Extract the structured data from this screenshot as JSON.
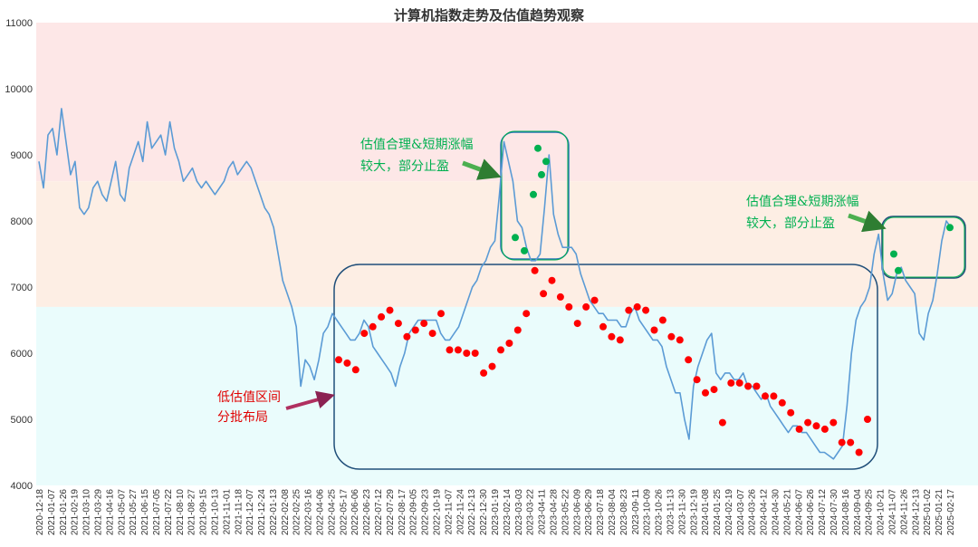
{
  "chart_data": {
    "type": "line",
    "title": "计算机指数走势及估值趋势观察",
    "xlabel": "",
    "ylabel": "",
    "ylim": [
      4000,
      11000
    ],
    "y_ticks": [
      4000,
      5000,
      6000,
      7000,
      8000,
      9000,
      10000,
      11000
    ],
    "x_tick_labels": [
      "2020-12-18",
      "2021-01-07",
      "2021-01-26",
      "2021-02-19",
      "2021-03-10",
      "2021-03-29",
      "2021-04-16",
      "2021-05-07",
      "2021-05-27",
      "2021-06-15",
      "2021-07-05",
      "2021-07-22",
      "2021-08-10",
      "2021-08-27",
      "2021-09-15",
      "2021-10-13",
      "2021-11-01",
      "2021-11-18",
      "2021-12-07",
      "2021-12-24",
      "2022-01-13",
      "2022-02-08",
      "2022-02-25",
      "2022-03-16",
      "2022-04-06",
      "2022-04-25",
      "2022-05-17",
      "2022-06-06",
      "2022-06-23",
      "2022-07-12",
      "2022-07-29",
      "2022-08-17",
      "2022-09-05",
      "2022-09-23",
      "2022-10-19",
      "2022-11-07",
      "2022-11-24",
      "2022-12-13",
      "2022-12-30",
      "2023-01-19",
      "2023-02-14",
      "2023-03-03",
      "2023-03-22",
      "2023-04-11",
      "2023-04-28",
      "2023-05-22",
      "2023-06-09",
      "2023-06-29",
      "2023-07-18",
      "2023-08-04",
      "2023-08-23",
      "2023-09-11",
      "2023-10-09",
      "2023-10-26",
      "2023-11-13",
      "2023-11-30",
      "2023-12-19",
      "2024-01-08",
      "2024-01-25",
      "2024-02-19",
      "2024-03-07",
      "2024-03-26",
      "2024-04-12",
      "2024-04-30",
      "2024-05-21",
      "2024-06-07",
      "2024-06-26",
      "2024-07-12",
      "2024-07-30",
      "2024-08-16",
      "2024-09-04",
      "2024-09-25",
      "2024-10-21",
      "2024-11-07",
      "2024-11-26",
      "2024-12-13",
      "2025-01-02",
      "2025-01-21",
      "2025-02-17"
    ],
    "bands": [
      {
        "from": 8600,
        "to": 11000,
        "color": "#fde7e7"
      },
      {
        "from": 6700,
        "to": 8600,
        "color": "#fdeee4"
      },
      {
        "from": 4000,
        "to": 6700,
        "color": "#eafcfc"
      }
    ],
    "series": [
      {
        "color": "#5b9bd5",
        "values": [
          8900,
          8500,
          9300,
          9400,
          9000,
          9700,
          9200,
          8700,
          8900,
          8200,
          8100,
          8200,
          8500,
          8600,
          8400,
          8300,
          8600,
          8900,
          8400,
          8300,
          8800,
          9000,
          9200,
          8900,
          9500,
          9100,
          9200,
          9300,
          9000,
          9500,
          9100,
          8900,
          8600,
          8700,
          8800,
          8600,
          8500,
          8600,
          8500,
          8400,
          8500,
          8600,
          8800,
          8900,
          8700,
          8800,
          8900,
          8800,
          8600,
          8400,
          8200,
          8100,
          7900,
          7500,
          7100,
          6900,
          6700,
          6400,
          5500,
          5900,
          5800,
          5600,
          5900,
          6300,
          6400,
          6600,
          6500,
          6400,
          6300,
          6200,
          6200,
          6300,
          6500,
          6400,
          6100,
          6000,
          5900,
          5800,
          5700,
          5500,
          5800,
          6000,
          6300,
          6400,
          6500,
          6500,
          6500,
          6500,
          6500,
          6300,
          6200,
          6200,
          6300,
          6400,
          6600,
          6800,
          7000,
          7100,
          7300,
          7400,
          7600,
          7700,
          8400,
          9200,
          8900,
          8600,
          8000,
          7900,
          7600,
          7400,
          7400,
          7500,
          8200,
          9000,
          8100,
          7800,
          7600,
          7600,
          7600,
          7500,
          7200,
          7000,
          6800,
          6700,
          6600,
          6600,
          6500,
          6500,
          6500,
          6400,
          6400,
          6600,
          6700,
          6500,
          6400,
          6300,
          6200,
          6200,
          6100,
          5800,
          5600,
          5400,
          5400,
          5000,
          4700,
          5500,
          5800,
          6000,
          6200,
          6300,
          5700,
          5600,
          5700,
          5700,
          5600,
          5600,
          5700,
          5500,
          5500,
          5400,
          5300,
          5400,
          5200,
          5100,
          5000,
          4900,
          4800,
          4900,
          4900,
          4800,
          4800,
          4700,
          4600,
          4500,
          4500,
          4450,
          4400,
          4500,
          4600,
          5200,
          6000,
          6500,
          6700,
          6800,
          7000,
          7500,
          7800,
          7200,
          6800,
          6900,
          7200,
          7300,
          7100,
          7000,
          6900,
          6300,
          6200,
          6600,
          6800,
          7200,
          7700,
          8000,
          7900
        ]
      }
    ],
    "markers": {
      "red": [
        [
          0.0,
          5900
        ],
        [
          1.0,
          5850
        ],
        [
          2.0,
          5750
        ],
        [
          3.0,
          6300
        ],
        [
          4.0,
          6400
        ],
        [
          5.0,
          6550
        ],
        [
          6.0,
          6650
        ],
        [
          7.0,
          6450
        ],
        [
          8.0,
          6250
        ],
        [
          9.0,
          6350
        ],
        [
          10.0,
          6450
        ],
        [
          11.0,
          6300
        ],
        [
          12.0,
          6600
        ],
        [
          13.0,
          6050
        ],
        [
          14.0,
          6050
        ],
        [
          15.0,
          6000
        ],
        [
          16.0,
          6000
        ],
        [
          17.0,
          5700
        ],
        [
          18.0,
          5800
        ],
        [
          19.0,
          6050
        ],
        [
          20.0,
          6150
        ],
        [
          21.0,
          6350
        ],
        [
          22.0,
          6600
        ],
        [
          23.0,
          7250
        ],
        [
          24.0,
          6900
        ],
        [
          25.0,
          7100
        ],
        [
          26.0,
          6850
        ],
        [
          27.0,
          6700
        ],
        [
          28.0,
          6450
        ],
        [
          29.0,
          6700
        ],
        [
          30.0,
          6800
        ],
        [
          31.0,
          6400
        ],
        [
          32.0,
          6250
        ],
        [
          33.0,
          6200
        ],
        [
          34.0,
          6650
        ],
        [
          35.0,
          6700
        ],
        [
          36.0,
          6650
        ],
        [
          37.0,
          6350
        ],
        [
          38.0,
          6500
        ],
        [
          39.0,
          6250
        ],
        [
          40.0,
          6200
        ],
        [
          41.0,
          5900
        ],
        [
          42.0,
          5600
        ],
        [
          43.0,
          5400
        ],
        [
          44.0,
          5450
        ],
        [
          45.0,
          4950
        ],
        [
          46.0,
          5550
        ],
        [
          47.0,
          5550
        ],
        [
          48.0,
          5500
        ],
        [
          49.0,
          5500
        ],
        [
          50.0,
          5350
        ],
        [
          51.0,
          5350
        ],
        [
          52.0,
          5250
        ],
        [
          53.0,
          5100
        ],
        [
          54.0,
          4850
        ],
        [
          55.0,
          4950
        ],
        [
          56.0,
          4900
        ],
        [
          57.0,
          4850
        ],
        [
          58.0,
          4950
        ],
        [
          59.0,
          4650
        ],
        [
          60.0,
          4650
        ],
        [
          61.0,
          4500
        ],
        [
          62.0,
          5000
        ]
      ],
      "green": [
        [
          0.0,
          7750
        ],
        [
          1.0,
          7550
        ],
        [
          2.0,
          8400
        ],
        [
          3.0,
          9100
        ],
        [
          4.0,
          8700
        ],
        [
          5.0,
          8900
        ],
        [
          6.0,
          7500
        ],
        [
          7.0,
          7250
        ],
        [
          8.0,
          7900
        ]
      ]
    },
    "annotations": [
      {
        "lines": [
          "估值合理&短期涨幅",
          "较大，部分止盈"
        ],
        "color": "#00b050"
      },
      {
        "lines": [
          "估值合理&短期涨幅",
          "较大，部分止盈"
        ],
        "color": "#00b050"
      },
      {
        "lines": [
          "低估值区间",
          "分批布局"
        ],
        "color": "#e00000"
      }
    ],
    "grid": false,
    "legend": "none"
  }
}
